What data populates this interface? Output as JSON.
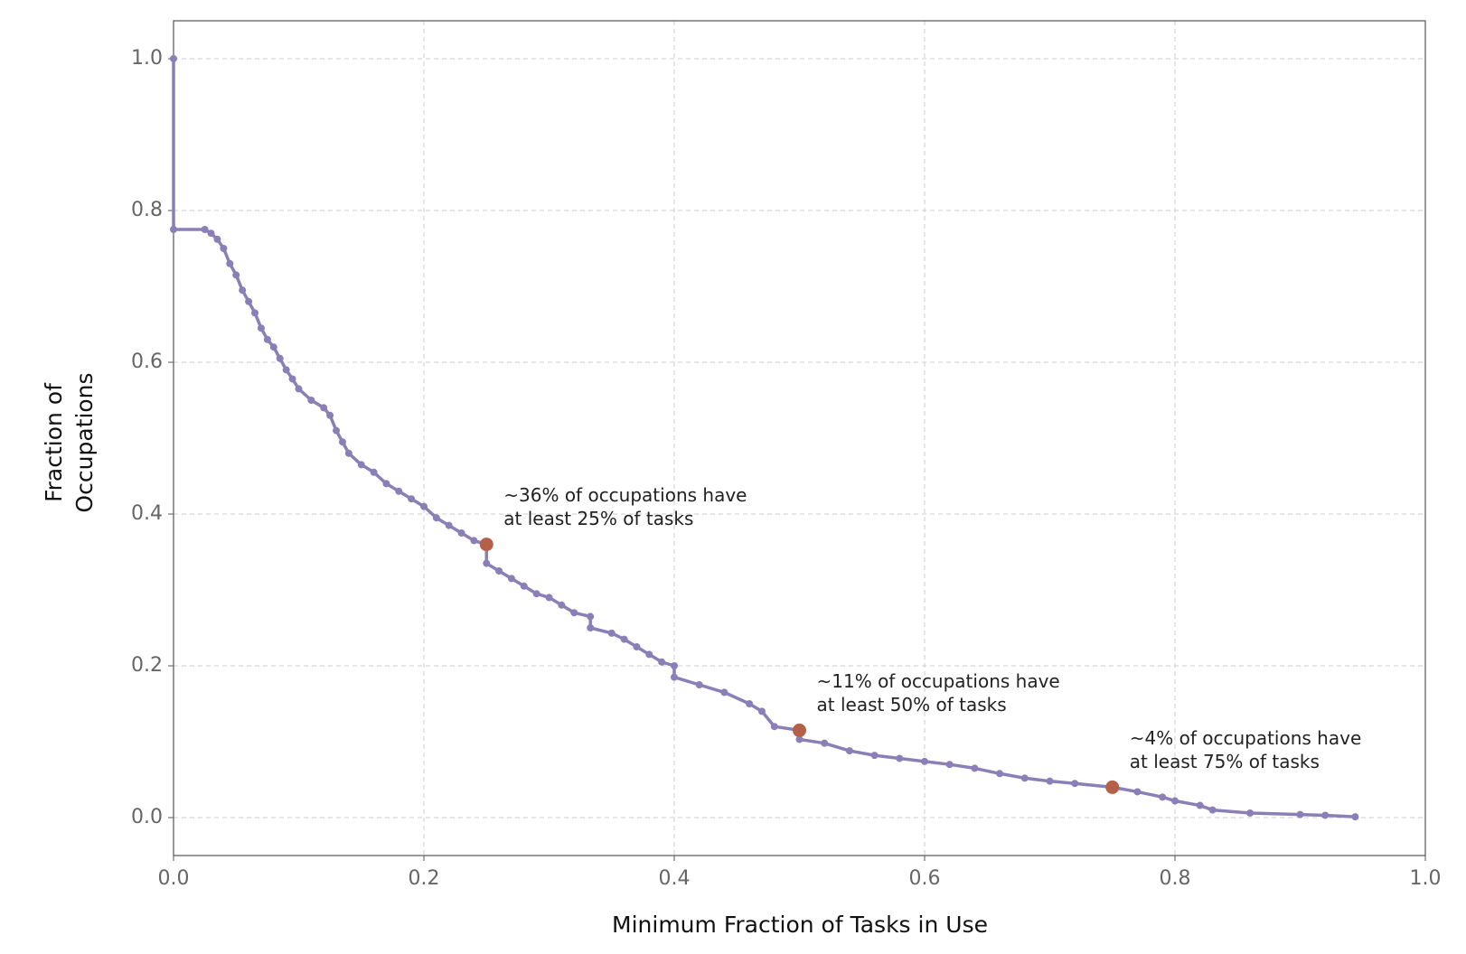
{
  "chart_data": {
    "type": "line",
    "xlabel": "Minimum Fraction of Tasks in Use",
    "ylabel": [
      "Fraction of",
      "Occupations"
    ],
    "xlim": [
      0,
      1
    ],
    "ylim": [
      -0.05,
      1.05
    ],
    "xticks": [
      {
        "value": 0,
        "label": "0.0"
      },
      0.2,
      0.4,
      0.6,
      0.8,
      {
        "value": 1,
        "label": "1.0"
      }
    ],
    "yticks": [
      {
        "value": 0,
        "label": "0.0"
      },
      0.2,
      0.4,
      0.6,
      0.8,
      {
        "value": 1,
        "label": "1.0"
      }
    ],
    "grid": true,
    "series": [
      {
        "color": "#8a7fb6",
        "x": [
          0,
          0,
          0.025,
          0.03,
          0.035,
          0.04,
          0.045,
          0.05,
          0.055,
          0.06,
          0.065,
          0.07,
          0.075,
          0.08,
          0.085,
          0.09,
          0.095,
          0.1,
          0.11,
          0.12,
          0.125,
          0.13,
          0.135,
          0.14,
          0.15,
          0.16,
          0.17,
          0.18,
          0.19,
          0.2,
          0.21,
          0.22,
          0.23,
          0.24,
          0.25,
          0.25,
          0.26,
          0.27,
          0.28,
          0.29,
          0.3,
          0.31,
          0.32,
          0.333,
          0.333,
          0.35,
          0.36,
          0.37,
          0.38,
          0.39,
          0.4,
          0.4,
          0.42,
          0.44,
          0.46,
          0.47,
          0.48,
          0.5,
          0.5,
          0.52,
          0.54,
          0.56,
          0.58,
          0.6,
          0.62,
          0.64,
          0.66,
          0.68,
          0.7,
          0.72,
          0.75,
          0.77,
          0.79,
          0.8,
          0.82,
          0.83,
          0.86,
          0.9,
          0.92,
          0.944
        ],
        "values": [
          1.0,
          0.775,
          0.775,
          0.77,
          0.762,
          0.75,
          0.73,
          0.715,
          0.695,
          0.68,
          0.665,
          0.645,
          0.63,
          0.62,
          0.605,
          0.59,
          0.578,
          0.565,
          0.55,
          0.54,
          0.53,
          0.51,
          0.495,
          0.48,
          0.465,
          0.455,
          0.44,
          0.43,
          0.42,
          0.41,
          0.395,
          0.385,
          0.375,
          0.365,
          0.36,
          0.335,
          0.325,
          0.315,
          0.305,
          0.295,
          0.29,
          0.28,
          0.27,
          0.265,
          0.25,
          0.243,
          0.235,
          0.225,
          0.215,
          0.205,
          0.2,
          0.185,
          0.175,
          0.165,
          0.15,
          0.14,
          0.12,
          0.115,
          0.103,
          0.098,
          0.088,
          0.082,
          0.078,
          0.074,
          0.07,
          0.065,
          0.058,
          0.052,
          0.048,
          0.045,
          0.04,
          0.034,
          0.027,
          0.022,
          0.016,
          0.01,
          0.006,
          0.004,
          0.003,
          0.001
        ]
      }
    ],
    "highlights": {
      "color": "#b5614a",
      "x": [
        0.25,
        0.5,
        0.75
      ],
      "values": [
        0.36,
        0.115,
        0.04
      ],
      "labels": [
        [
          "~36% of occupations have",
          "at least 25% of tasks"
        ],
        [
          "~11% of occupations have",
          "at least 50% of tasks"
        ],
        [
          "~4% of occupations have",
          "at least 75% of tasks"
        ]
      ]
    }
  }
}
